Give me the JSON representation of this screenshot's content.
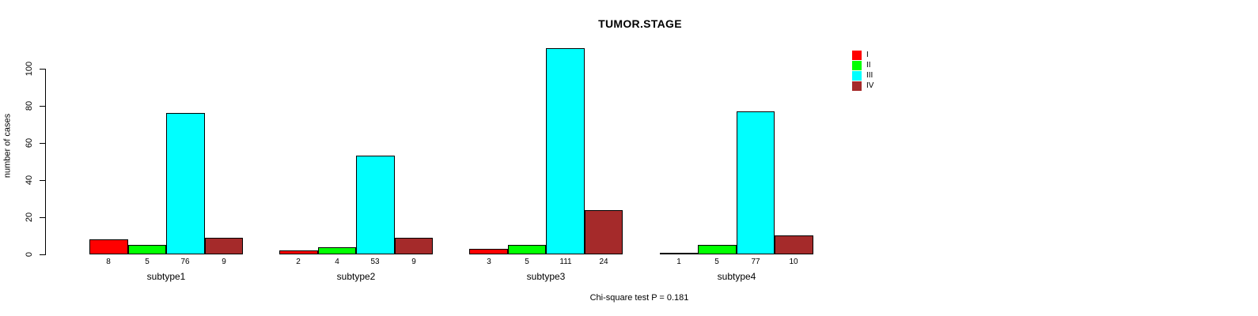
{
  "title": "TUMOR.STAGE",
  "footer": "Chi-square test P = 0.181",
  "chart_data": {
    "type": "bar",
    "title": "TUMOR.STAGE",
    "xlabel": "",
    "ylabel": "number of cases",
    "ylim": [
      0,
      111
    ],
    "yticks": [
      0,
      20,
      40,
      60,
      80,
      100
    ],
    "grid": false,
    "legend_position": "top-right",
    "categories": [
      "subtype1",
      "subtype2",
      "subtype3",
      "subtype4"
    ],
    "series": [
      {
        "name": "I",
        "color": "#ff0000",
        "values": [
          8,
          2,
          3,
          1
        ]
      },
      {
        "name": "II",
        "color": "#00ff00",
        "values": [
          5,
          4,
          5,
          5
        ]
      },
      {
        "name": "III",
        "color": "#00ffff",
        "values": [
          76,
          53,
          111,
          77
        ]
      },
      {
        "name": "IV",
        "color": "#a52a2a",
        "values": [
          9,
          9,
          24,
          10
        ]
      }
    ],
    "bar_value_labels": [
      [
        8,
        5,
        76,
        9
      ],
      [
        2,
        4,
        53,
        9
      ],
      [
        3,
        5,
        111,
        24
      ],
      [
        1,
        5,
        77,
        10
      ]
    ],
    "annotation": "Chi-square test P = 0.181"
  }
}
